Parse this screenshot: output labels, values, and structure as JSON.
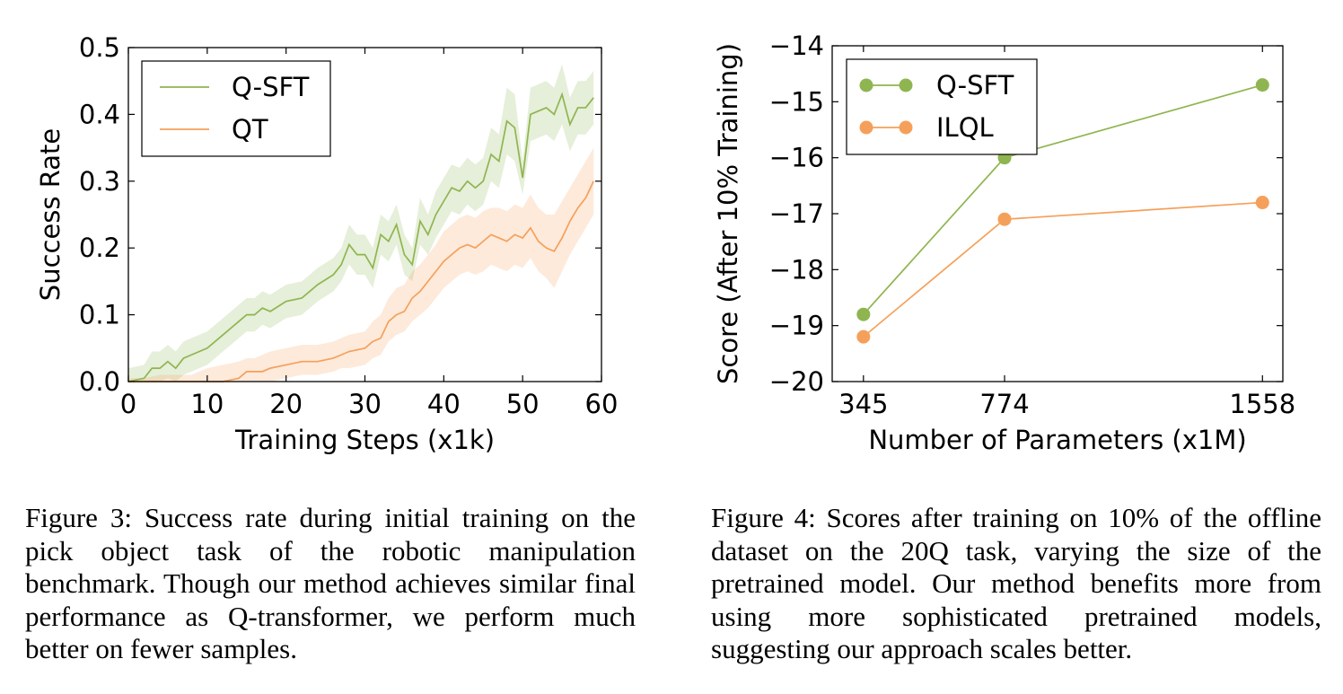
{
  "chart_data": [
    {
      "type": "line",
      "xlabel": "Training Steps (x1k)",
      "ylabel": "Success Rate",
      "xlim": [
        0,
        60
      ],
      "ylim": [
        0,
        0.5
      ],
      "xticks": [
        0,
        10,
        20,
        30,
        40,
        50,
        60
      ],
      "yticks": [
        0.0,
        0.1,
        0.2,
        0.3,
        0.4,
        0.5
      ],
      "xtick_labels": [
        "0",
        "10",
        "20",
        "30",
        "40",
        "50",
        "60"
      ],
      "ytick_labels": [
        "0.0",
        "0.1",
        "0.2",
        "0.3",
        "0.4",
        "0.5"
      ],
      "legend_position": "top-left",
      "grid": false,
      "series": [
        {
          "name": "Q-SFT",
          "color": "#8fb550",
          "x": [
            0,
            2,
            3,
            4,
            5,
            6,
            7,
            8,
            9,
            10,
            12,
            14,
            15,
            16,
            17,
            18,
            20,
            22,
            24,
            26,
            27,
            28,
            29,
            30,
            31,
            32,
            33,
            34,
            35,
            36,
            37,
            38,
            39,
            40,
            41,
            42,
            43,
            44,
            45,
            46,
            47,
            48,
            49,
            50,
            51,
            52,
            53,
            54,
            55,
            56,
            57,
            58,
            59
          ],
          "y": [
            0.0,
            0.005,
            0.02,
            0.02,
            0.03,
            0.02,
            0.035,
            0.04,
            0.045,
            0.05,
            0.07,
            0.09,
            0.1,
            0.1,
            0.11,
            0.105,
            0.12,
            0.125,
            0.145,
            0.16,
            0.175,
            0.205,
            0.19,
            0.19,
            0.17,
            0.22,
            0.21,
            0.235,
            0.19,
            0.175,
            0.24,
            0.22,
            0.25,
            0.27,
            0.29,
            0.285,
            0.3,
            0.29,
            0.3,
            0.34,
            0.33,
            0.39,
            0.38,
            0.305,
            0.4,
            0.405,
            0.41,
            0.4,
            0.43,
            0.385,
            0.41,
            0.41,
            0.425
          ],
          "lower": [
            0.0,
            0.0,
            0.0,
            0.0,
            0.005,
            0.0,
            0.01,
            0.015,
            0.02,
            0.025,
            0.045,
            0.065,
            0.075,
            0.075,
            0.085,
            0.08,
            0.095,
            0.1,
            0.12,
            0.135,
            0.15,
            0.175,
            0.16,
            0.16,
            0.14,
            0.19,
            0.18,
            0.205,
            0.16,
            0.15,
            0.205,
            0.19,
            0.215,
            0.235,
            0.255,
            0.25,
            0.265,
            0.255,
            0.265,
            0.3,
            0.29,
            0.34,
            0.33,
            0.28,
            0.36,
            0.365,
            0.37,
            0.36,
            0.385,
            0.345,
            0.37,
            0.37,
            0.385
          ],
          "upper": [
            0.02,
            0.025,
            0.045,
            0.045,
            0.055,
            0.045,
            0.06,
            0.065,
            0.07,
            0.075,
            0.095,
            0.115,
            0.125,
            0.125,
            0.135,
            0.13,
            0.145,
            0.15,
            0.17,
            0.185,
            0.2,
            0.235,
            0.22,
            0.22,
            0.2,
            0.25,
            0.24,
            0.265,
            0.22,
            0.2,
            0.275,
            0.25,
            0.285,
            0.305,
            0.325,
            0.32,
            0.335,
            0.325,
            0.335,
            0.38,
            0.37,
            0.44,
            0.43,
            0.33,
            0.44,
            0.445,
            0.45,
            0.44,
            0.475,
            0.425,
            0.45,
            0.45,
            0.465
          ]
        },
        {
          "name": "QT",
          "color": "#f5a05a",
          "x": [
            0,
            2,
            4,
            6,
            8,
            10,
            12,
            14,
            15,
            16,
            17,
            18,
            20,
            22,
            24,
            26,
            27,
            28,
            30,
            31,
            32,
            33,
            34,
            35,
            36,
            37,
            38,
            39,
            40,
            41,
            42,
            43,
            44,
            45,
            46,
            47,
            48,
            49,
            50,
            51,
            52,
            53,
            54,
            55,
            56,
            57,
            58,
            59
          ],
          "y": [
            0.0,
            0.0,
            0.0,
            0.0,
            0.0,
            0.0,
            0.0,
            0.005,
            0.015,
            0.015,
            0.015,
            0.02,
            0.025,
            0.03,
            0.03,
            0.035,
            0.04,
            0.045,
            0.05,
            0.06,
            0.065,
            0.09,
            0.1,
            0.105,
            0.125,
            0.135,
            0.15,
            0.165,
            0.18,
            0.19,
            0.2,
            0.205,
            0.2,
            0.21,
            0.22,
            0.215,
            0.21,
            0.22,
            0.215,
            0.23,
            0.21,
            0.2,
            0.195,
            0.215,
            0.24,
            0.26,
            0.275,
            0.3
          ],
          "lower": [
            0.0,
            0.0,
            0.0,
            0.0,
            0.0,
            0.0,
            0.0,
            0.0,
            0.0,
            0.0,
            0.0,
            0.0,
            0.005,
            0.01,
            0.01,
            0.015,
            0.02,
            0.02,
            0.025,
            0.035,
            0.04,
            0.06,
            0.07,
            0.075,
            0.09,
            0.1,
            0.11,
            0.125,
            0.14,
            0.15,
            0.16,
            0.165,
            0.16,
            0.165,
            0.175,
            0.17,
            0.165,
            0.175,
            0.17,
            0.185,
            0.165,
            0.155,
            0.14,
            0.165,
            0.19,
            0.21,
            0.23,
            0.25
          ],
          "upper": [
            0.005,
            0.005,
            0.01,
            0.01,
            0.01,
            0.02,
            0.025,
            0.03,
            0.035,
            0.035,
            0.04,
            0.045,
            0.05,
            0.055,
            0.055,
            0.06,
            0.065,
            0.07,
            0.075,
            0.09,
            0.1,
            0.125,
            0.14,
            0.145,
            0.165,
            0.175,
            0.19,
            0.205,
            0.225,
            0.235,
            0.245,
            0.25,
            0.245,
            0.255,
            0.26,
            0.26,
            0.255,
            0.265,
            0.26,
            0.28,
            0.26,
            0.25,
            0.25,
            0.27,
            0.29,
            0.31,
            0.33,
            0.35
          ]
        }
      ]
    },
    {
      "type": "line",
      "xlabel": "Number of Parameters (x1M)",
      "ylabel": "Score (After 10% Training)",
      "xlim": [
        250,
        1620
      ],
      "ylim": [
        -20,
        -14
      ],
      "xticks": [
        345,
        774,
        1558
      ],
      "yticks": [
        -20,
        -19,
        -18,
        -17,
        -16,
        -15,
        -14
      ],
      "xtick_labels": [
        "345",
        "774",
        "1558"
      ],
      "ytick_labels": [
        "−20",
        "−19",
        "−18",
        "−17",
        "−16",
        "−15",
        "−14"
      ],
      "legend_position": "top-left",
      "grid": false,
      "series": [
        {
          "name": "Q-SFT",
          "color": "#8fb550",
          "x": [
            345,
            774,
            1558
          ],
          "y": [
            -18.8,
            -16.0,
            -14.7
          ]
        },
        {
          "name": "ILQL",
          "color": "#f5a05a",
          "x": [
            345,
            774,
            1558
          ],
          "y": [
            -19.2,
            -17.1,
            -16.8
          ]
        }
      ]
    }
  ],
  "captions": {
    "figure_3": "Figure 3: Success rate during initial training on the pick object task of the robotic manipulation benchmark. Though our method achieves similar final performance as Q-transformer, we perform much better on fewer samples.",
    "figure_4": "Figure 4: Scores after training on 10% of the offline dataset on the 20Q task, varying the size of the pretrained model. Our method benefits more from using more sophisticated pretrained models, suggesting our approach scales better."
  }
}
